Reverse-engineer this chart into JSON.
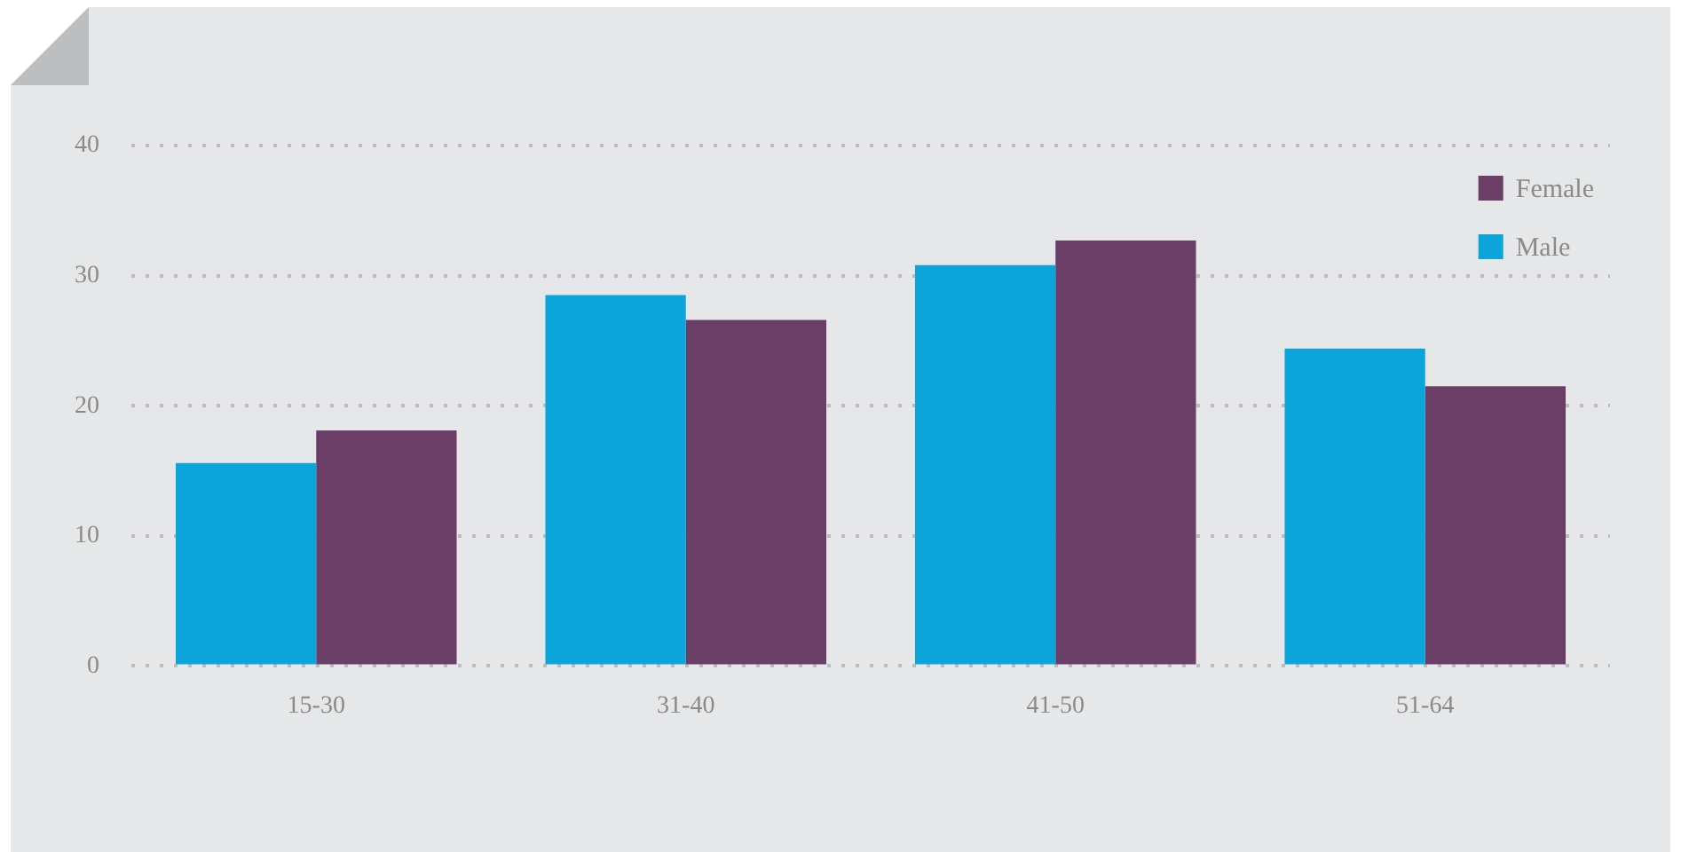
{
  "chart_data": {
    "type": "bar",
    "categories": [
      "15-30",
      "31-40",
      "41-50",
      "51-64"
    ],
    "series": [
      {
        "name": "Male",
        "color": "#0ba5dc",
        "values": [
          15.6,
          28.5,
          30.8,
          24.4
        ]
      },
      {
        "name": "Female",
        "color": "#6a3e67",
        "values": [
          18.1,
          26.6,
          32.7,
          21.5
        ]
      }
    ],
    "ylim": [
      0,
      40
    ],
    "yticks": [
      0,
      10,
      20,
      30,
      40
    ],
    "grid": "y",
    "legend": "top right"
  }
}
